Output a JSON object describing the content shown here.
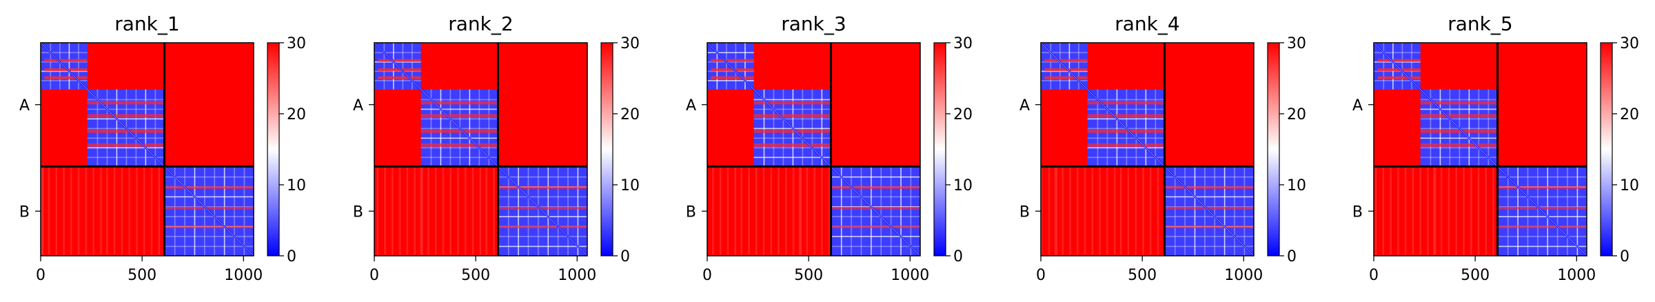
{
  "chart_data": [
    {
      "type": "heatmap",
      "title": "rank_1",
      "x_ticks": [
        0,
        500,
        1000
      ],
      "y_labels": [
        "A",
        "B"
      ],
      "chain_boundary": 610,
      "length": 1050,
      "colorbar": {
        "min": 0,
        "max": 30,
        "ticks": [
          0,
          10,
          20,
          30
        ]
      },
      "domains": [
        [
          0,
          230
        ],
        [
          230,
          610
        ],
        [
          610,
          1050
        ]
      ]
    },
    {
      "type": "heatmap",
      "title": "rank_2",
      "x_ticks": [
        0,
        500,
        1000
      ],
      "y_labels": [
        "A",
        "B"
      ],
      "chain_boundary": 610,
      "length": 1050,
      "colorbar": {
        "min": 0,
        "max": 30,
        "ticks": [
          0,
          10,
          20,
          30
        ]
      },
      "domains": [
        [
          0,
          230
        ],
        [
          230,
          610
        ],
        [
          610,
          1050
        ]
      ]
    },
    {
      "type": "heatmap",
      "title": "rank_3",
      "x_ticks": [
        0,
        500,
        1000
      ],
      "y_labels": [
        "A",
        "B"
      ],
      "chain_boundary": 610,
      "length": 1050,
      "colorbar": {
        "min": 0,
        "max": 30,
        "ticks": [
          0,
          10,
          20,
          30
        ]
      },
      "domains": [
        [
          0,
          230
        ],
        [
          230,
          610
        ],
        [
          610,
          1050
        ]
      ]
    },
    {
      "type": "heatmap",
      "title": "rank_4",
      "x_ticks": [
        0,
        500,
        1000
      ],
      "y_labels": [
        "A",
        "B"
      ],
      "chain_boundary": 610,
      "length": 1050,
      "colorbar": {
        "min": 0,
        "max": 30,
        "ticks": [
          0,
          10,
          20,
          30
        ]
      },
      "domains": [
        [
          0,
          230
        ],
        [
          230,
          610
        ],
        [
          610,
          1050
        ]
      ]
    },
    {
      "type": "heatmap",
      "title": "rank_5",
      "x_ticks": [
        0,
        500,
        1000
      ],
      "y_labels": [
        "A",
        "B"
      ],
      "chain_boundary": 610,
      "length": 1050,
      "colorbar": {
        "min": 0,
        "max": 30,
        "ticks": [
          0,
          10,
          20,
          30
        ]
      },
      "domains": [
        [
          0,
          230
        ],
        [
          230,
          610
        ],
        [
          610,
          1050
        ]
      ]
    }
  ],
  "colors": {
    "low": "#0000ff",
    "mid": "#ffffff",
    "high": "#ff0000"
  }
}
